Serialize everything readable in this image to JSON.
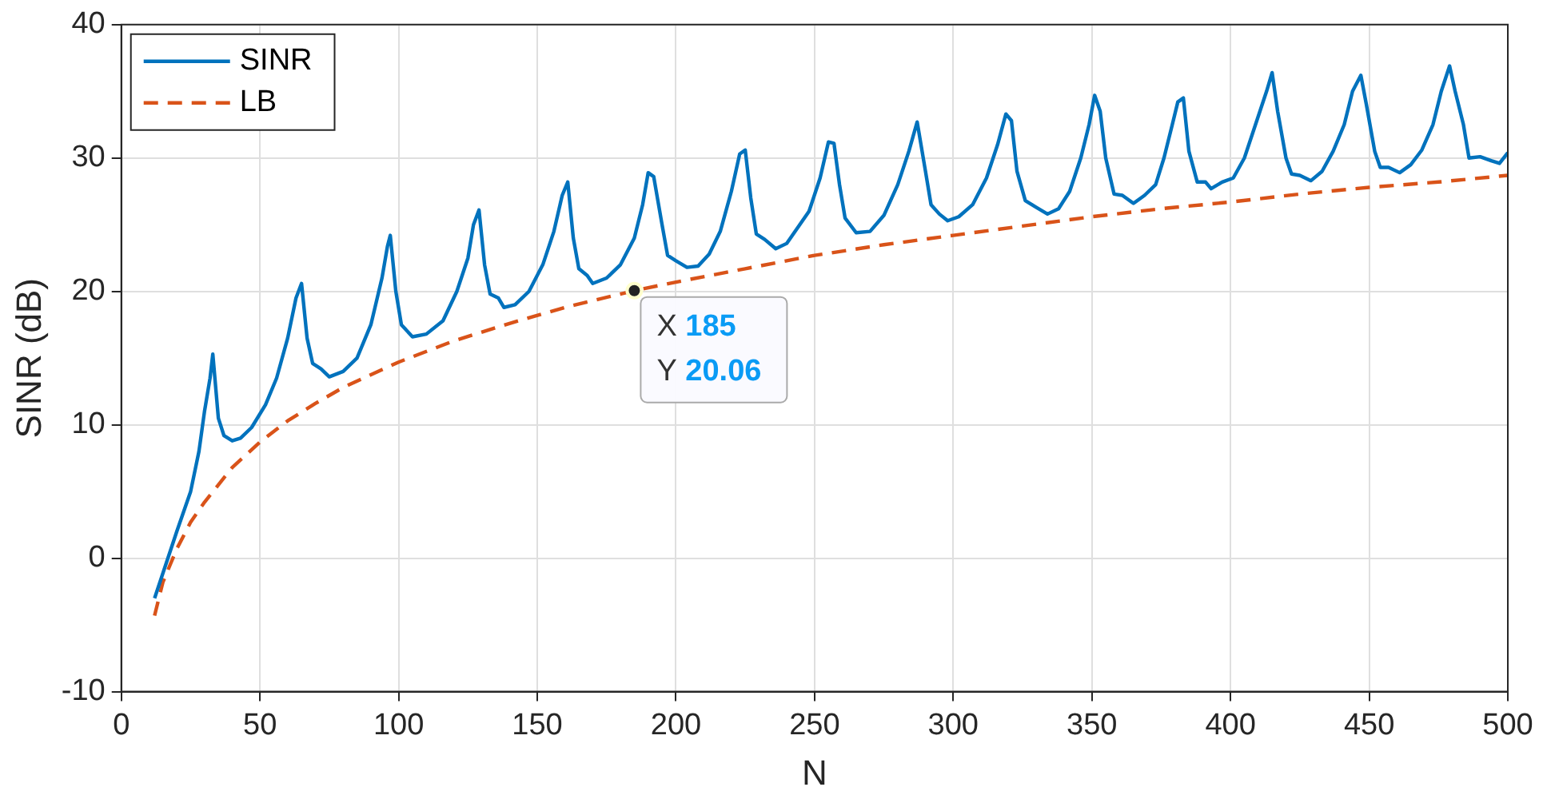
{
  "chart_data": {
    "type": "line",
    "xlabel": "N",
    "ylabel": "SINR (dB)",
    "xlim": [
      0,
      500
    ],
    "xticks": [
      0,
      50,
      100,
      150,
      200,
      250,
      300,
      350,
      400,
      450,
      500
    ],
    "ylim": [
      -10,
      40
    ],
    "yticks": [
      -10,
      0,
      10,
      20,
      30,
      40
    ],
    "grid": true,
    "legend": "top left",
    "marker": "none",
    "series": [
      {
        "name": "SINR",
        "color": "#0072bd",
        "line_style": "solid",
        "x": [
          12,
          20,
          25,
          28,
          30,
          32,
          33,
          35,
          37,
          40,
          43,
          47,
          52,
          56,
          60,
          63,
          65,
          67,
          69,
          72,
          75,
          80,
          85,
          90,
          94,
          96,
          97,
          99,
          101,
          105,
          110,
          116,
          121,
          125,
          127,
          129,
          131,
          133,
          136,
          138,
          142,
          147,
          152,
          156,
          159,
          161,
          163,
          165,
          168,
          170,
          175,
          180,
          185,
          188,
          190,
          192,
          195,
          197,
          200,
          204,
          208,
          212,
          216,
          220,
          223,
          225,
          227,
          229,
          232,
          236,
          240,
          244,
          248,
          252,
          255,
          257,
          259,
          261,
          265,
          270,
          275,
          280,
          284,
          287,
          290,
          292,
          295,
          298,
          302,
          307,
          312,
          316,
          319,
          321,
          323,
          326,
          330,
          334,
          338,
          342,
          346,
          349,
          351,
          353,
          355,
          358,
          361,
          365,
          369,
          373,
          376,
          379,
          381,
          383,
          385,
          388,
          391,
          393,
          397,
          401,
          405,
          409,
          413,
          415,
          417,
          420,
          422,
          425,
          429,
          433,
          437,
          441,
          444,
          447,
          449,
          452,
          454,
          457,
          461,
          465,
          469,
          473,
          476,
          479,
          481,
          484,
          486,
          490,
          494,
          497,
          500
        ],
        "values": [
          -3,
          2,
          5,
          8,
          11,
          13.5,
          15.3,
          10.5,
          9.2,
          8.8,
          9,
          9.8,
          11.5,
          13.5,
          16.5,
          19.5,
          20.6,
          16.5,
          14.6,
          14.2,
          13.6,
          14,
          15,
          17.5,
          21,
          23.4,
          24.2,
          20,
          17.5,
          16.6,
          16.8,
          17.8,
          20,
          22.5,
          25,
          26.1,
          22,
          19.8,
          19.5,
          18.8,
          19,
          20,
          22,
          24.5,
          27.2,
          28.2,
          24,
          21.7,
          21.2,
          20.6,
          21,
          22,
          24,
          26.5,
          28.9,
          28.6,
          25,
          22.7,
          22.3,
          21.8,
          21.9,
          22.8,
          24.5,
          27.5,
          30.3,
          30.6,
          27,
          24.3,
          23.9,
          23.2,
          23.6,
          24.8,
          26,
          28.5,
          31.2,
          31.1,
          28,
          25.5,
          24.4,
          24.5,
          25.7,
          28,
          30.5,
          32.7,
          29,
          26.5,
          25.8,
          25.3,
          25.6,
          26.5,
          28.5,
          31,
          33.3,
          32.8,
          29,
          26.8,
          26.3,
          25.8,
          26.2,
          27.5,
          30,
          32.5,
          34.7,
          33.5,
          30,
          27.3,
          27.2,
          26.6,
          27.2,
          28,
          30,
          32.5,
          34.2,
          34.5,
          30.5,
          28.2,
          28.2,
          27.7,
          28.2,
          28.5,
          30,
          32.5,
          35,
          36.4,
          33.5,
          30,
          28.8,
          28.7,
          28.3,
          29,
          30.5,
          32.5,
          35,
          36.2,
          34,
          30.5,
          29.3,
          29.3,
          28.9,
          29.5,
          30.6,
          32.5,
          35,
          36.9,
          35,
          32.5,
          30,
          30.1,
          29.8,
          29.6,
          30.4
        ]
      },
      {
        "name": "LB",
        "color": "#d95319",
        "line_style": "dashed",
        "x": [
          12,
          15,
          20,
          25,
          30,
          40,
          50,
          60,
          70,
          80,
          100,
          120,
          140,
          160,
          185,
          200,
          225,
          250,
          275,
          300,
          325,
          350,
          375,
          400,
          425,
          450,
          475,
          500
        ],
        "values": [
          -4.3,
          -1.8,
          0.7,
          2.7,
          4.2,
          6.8,
          8.7,
          10.3,
          11.6,
          12.8,
          14.7,
          16.3,
          17.6,
          18.8,
          20.06,
          20.7,
          21.7,
          22.7,
          23.5,
          24.2,
          24.9,
          25.6,
          26.2,
          26.7,
          27.3,
          27.8,
          28.2,
          28.7
        ]
      }
    ],
    "annotations": [
      {
        "text": "X 185\nY 20.06",
        "x": 185,
        "y": 20.06
      }
    ]
  }
}
